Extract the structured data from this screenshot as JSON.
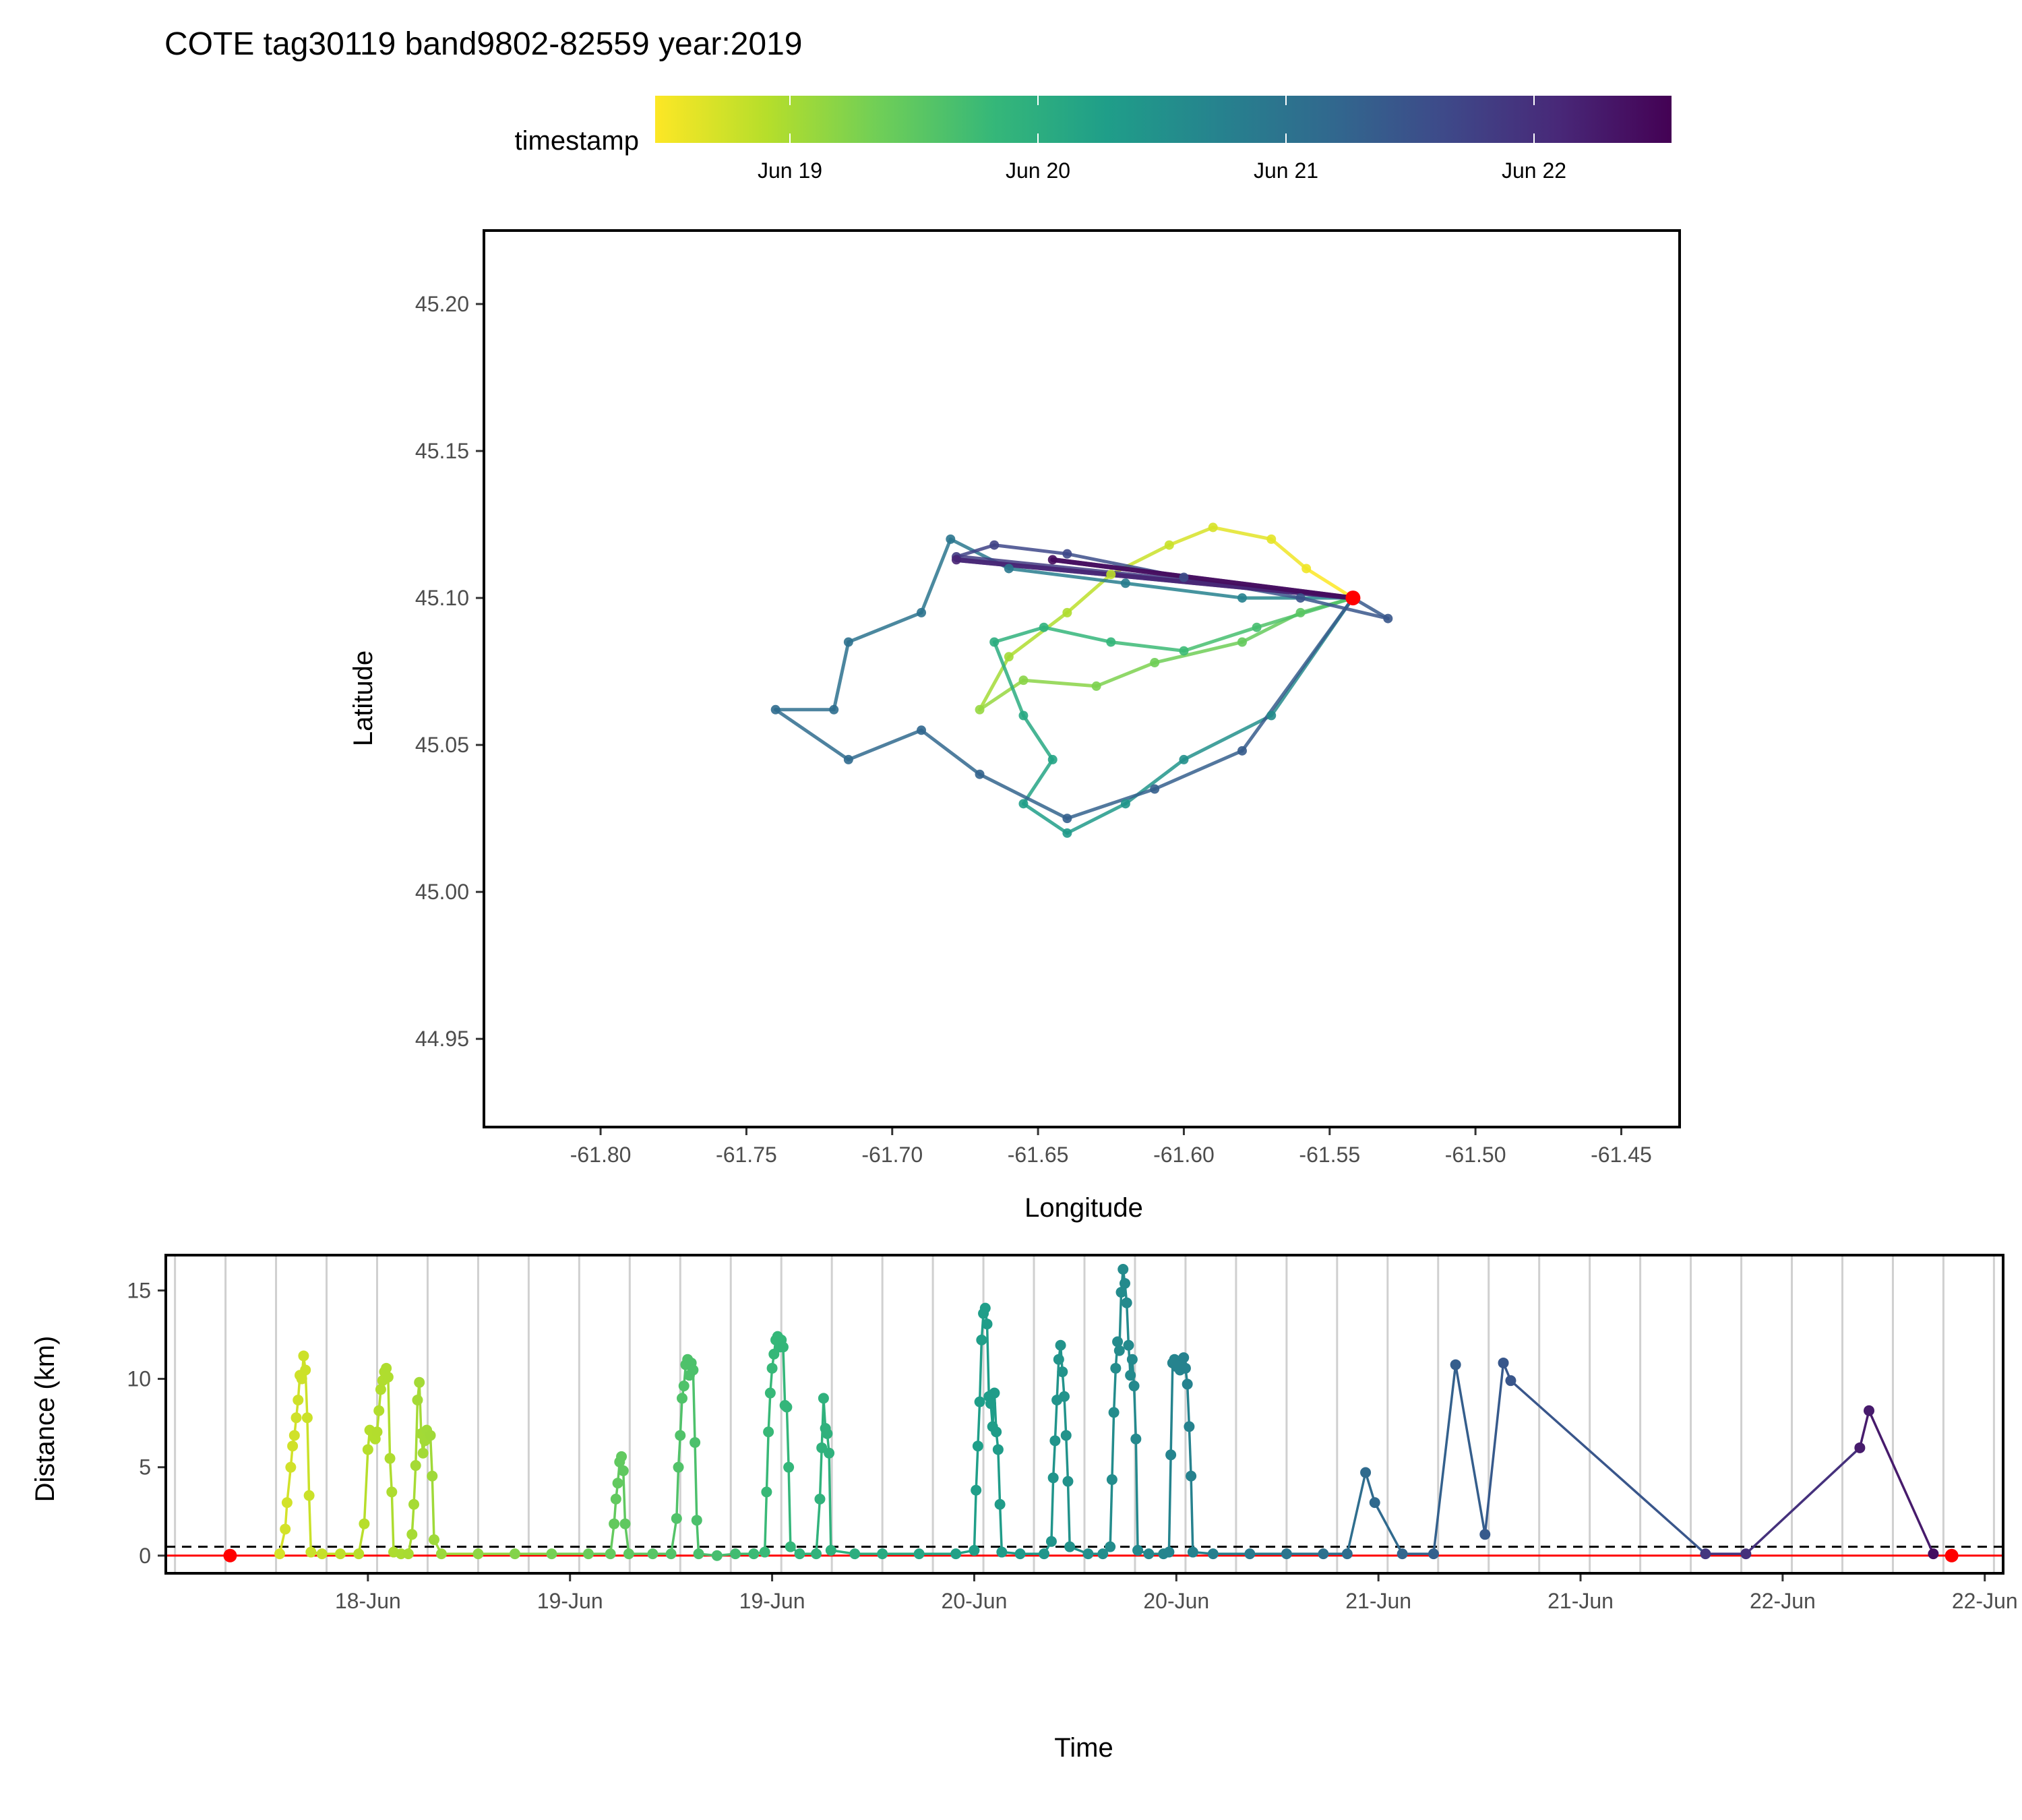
{
  "title": "COTE tag30119 band9802-82559 year:2019",
  "colors": {
    "scale": [
      "#fde725",
      "#b5de2b",
      "#6ece58",
      "#35b779",
      "#1f9e89",
      "#26828e",
      "#31688e",
      "#3e4989",
      "#482878",
      "#440154"
    ],
    "marker": "#ff0000",
    "refline": "#ff0000",
    "grid": "#d0d0d0"
  },
  "legend": {
    "label": "timestamp",
    "ticks": [
      "Jun 19",
      "Jun 20",
      "Jun 21",
      "Jun 22"
    ]
  },
  "chart_data": [
    {
      "type": "line",
      "subtype": "map-track",
      "xlabel": "Longitude",
      "ylabel": "Latitude",
      "xlim": [
        -61.84,
        -61.43
      ],
      "ylim": [
        44.92,
        45.225
      ],
      "x_ticks": [
        "-61.80",
        "-61.75",
        "-61.70",
        "-61.65",
        "-61.60",
        "-61.55",
        "-61.50",
        "-61.45"
      ],
      "y_ticks": [
        "44.95",
        "45.00",
        "45.05",
        "45.10",
        "45.15",
        "45.20"
      ],
      "colony": {
        "lon": -61.542,
        "lat": 45.1
      },
      "track": [
        {
          "lon": -61.542,
          "lat": 45.1,
          "t": 0.0
        },
        {
          "lon": -61.558,
          "lat": 45.11,
          "t": 0.02
        },
        {
          "lon": -61.57,
          "lat": 45.12,
          "t": 0.04
        },
        {
          "lon": -61.59,
          "lat": 45.124,
          "t": 0.06
        },
        {
          "lon": -61.605,
          "lat": 45.118,
          "t": 0.08
        },
        {
          "lon": -61.625,
          "lat": 45.108,
          "t": 0.1
        },
        {
          "lon": -61.64,
          "lat": 45.095,
          "t": 0.12
        },
        {
          "lon": -61.66,
          "lat": 45.08,
          "t": 0.14
        },
        {
          "lon": -61.67,
          "lat": 45.062,
          "t": 0.16
        },
        {
          "lon": -61.655,
          "lat": 45.072,
          "t": 0.18
        },
        {
          "lon": -61.63,
          "lat": 45.07,
          "t": 0.2
        },
        {
          "lon": -61.61,
          "lat": 45.078,
          "t": 0.22
        },
        {
          "lon": -61.58,
          "lat": 45.085,
          "t": 0.24
        },
        {
          "lon": -61.56,
          "lat": 45.095,
          "t": 0.26
        },
        {
          "lon": -61.542,
          "lat": 45.1,
          "t": 0.28
        },
        {
          "lon": -61.575,
          "lat": 45.09,
          "t": 0.3
        },
        {
          "lon": -61.6,
          "lat": 45.082,
          "t": 0.32
        },
        {
          "lon": -61.625,
          "lat": 45.085,
          "t": 0.34
        },
        {
          "lon": -61.648,
          "lat": 45.09,
          "t": 0.36
        },
        {
          "lon": -61.665,
          "lat": 45.085,
          "t": 0.38
        },
        {
          "lon": -61.655,
          "lat": 45.06,
          "t": 0.4
        },
        {
          "lon": -61.645,
          "lat": 45.045,
          "t": 0.42
        },
        {
          "lon": -61.655,
          "lat": 45.03,
          "t": 0.44
        },
        {
          "lon": -61.64,
          "lat": 45.02,
          "t": 0.46
        },
        {
          "lon": -61.62,
          "lat": 45.03,
          "t": 0.48
        },
        {
          "lon": -61.6,
          "lat": 45.045,
          "t": 0.5
        },
        {
          "lon": -61.57,
          "lat": 45.06,
          "t": 0.52
        },
        {
          "lon": -61.542,
          "lat": 45.1,
          "t": 0.54
        },
        {
          "lon": -61.58,
          "lat": 45.1,
          "t": 0.56
        },
        {
          "lon": -61.62,
          "lat": 45.105,
          "t": 0.58
        },
        {
          "lon": -61.66,
          "lat": 45.11,
          "t": 0.6
        },
        {
          "lon": -61.68,
          "lat": 45.12,
          "t": 0.61
        },
        {
          "lon": -61.69,
          "lat": 45.095,
          "t": 0.62
        },
        {
          "lon": -61.715,
          "lat": 45.085,
          "t": 0.63
        },
        {
          "lon": -61.72,
          "lat": 45.062,
          "t": 0.64
        },
        {
          "lon": -61.74,
          "lat": 45.062,
          "t": 0.65
        },
        {
          "lon": -61.715,
          "lat": 45.045,
          "t": 0.66
        },
        {
          "lon": -61.69,
          "lat": 45.055,
          "t": 0.67
        },
        {
          "lon": -61.67,
          "lat": 45.04,
          "t": 0.68
        },
        {
          "lon": -61.64,
          "lat": 45.025,
          "t": 0.69
        },
        {
          "lon": -61.61,
          "lat": 45.035,
          "t": 0.7
        },
        {
          "lon": -61.58,
          "lat": 45.048,
          "t": 0.71
        },
        {
          "lon": -61.542,
          "lat": 45.1,
          "t": 0.72
        },
        {
          "lon": -61.53,
          "lat": 45.093,
          "t": 0.73
        },
        {
          "lon": -61.56,
          "lat": 45.1,
          "t": 0.74
        },
        {
          "lon": -61.6,
          "lat": 45.107,
          "t": 0.76
        },
        {
          "lon": -61.64,
          "lat": 45.115,
          "t": 0.78
        },
        {
          "lon": -61.665,
          "lat": 45.118,
          "t": 0.8
        },
        {
          "lon": -61.678,
          "lat": 45.114,
          "t": 0.82
        },
        {
          "lon": -61.542,
          "lat": 45.1,
          "t": 0.85
        },
        {
          "lon": -61.678,
          "lat": 45.113,
          "t": 0.9
        },
        {
          "lon": -61.542,
          "lat": 45.1,
          "t": 0.94
        },
        {
          "lon": -61.645,
          "lat": 45.113,
          "t": 0.97
        },
        {
          "lon": -61.542,
          "lat": 45.1,
          "t": 1.0
        }
      ]
    },
    {
      "type": "line",
      "subtype": "time-series",
      "xlabel": "Time",
      "ylabel": "Distance (km)",
      "ylim": [
        -1,
        17
      ],
      "xlim": [
        0,
        100
      ],
      "x_ticks": [
        {
          "x": 11,
          "label": "18-Jun"
        },
        {
          "x": 22,
          "label": "19-Jun"
        },
        {
          "x": 33,
          "label": "19-Jun"
        },
        {
          "x": 44,
          "label": "20-Jun"
        },
        {
          "x": 55,
          "label": "20-Jun"
        },
        {
          "x": 66,
          "label": "21-Jun"
        },
        {
          "x": 77,
          "label": "21-Jun"
        },
        {
          "x": 88,
          "label": "22-Jun"
        },
        {
          "x": 99,
          "label": "22-Jun"
        }
      ],
      "y_ticks": [
        "0",
        "5",
        "10",
        "15"
      ],
      "threshold_km": 0.5,
      "reference_km": 0,
      "start_marker": {
        "x": 3.5,
        "y": 0
      },
      "end_marker": {
        "x": 97.2,
        "y": 0
      },
      "points": [
        {
          "x": 6.2,
          "y": 0.1
        },
        {
          "x": 6.5,
          "y": 1.5
        },
        {
          "x": 6.6,
          "y": 3.0
        },
        {
          "x": 6.8,
          "y": 5.0
        },
        {
          "x": 6.9,
          "y": 6.2
        },
        {
          "x": 7.0,
          "y": 6.8
        },
        {
          "x": 7.1,
          "y": 7.8
        },
        {
          "x": 7.2,
          "y": 8.8
        },
        {
          "x": 7.3,
          "y": 10.2
        },
        {
          "x": 7.4,
          "y": 10.0
        },
        {
          "x": 7.5,
          "y": 11.3
        },
        {
          "x": 7.6,
          "y": 10.5
        },
        {
          "x": 7.7,
          "y": 7.8
        },
        {
          "x": 7.8,
          "y": 3.4
        },
        {
          "x": 7.9,
          "y": 0.2
        },
        {
          "x": 8.5,
          "y": 0.1
        },
        {
          "x": 9.5,
          "y": 0.1
        },
        {
          "x": 10.5,
          "y": 0.1
        },
        {
          "x": 10.8,
          "y": 1.8
        },
        {
          "x": 11.0,
          "y": 6.0
        },
        {
          "x": 11.1,
          "y": 7.1
        },
        {
          "x": 11.3,
          "y": 6.8
        },
        {
          "x": 11.4,
          "y": 6.6
        },
        {
          "x": 11.5,
          "y": 7.0
        },
        {
          "x": 11.6,
          "y": 8.2
        },
        {
          "x": 11.7,
          "y": 9.4
        },
        {
          "x": 11.8,
          "y": 9.9
        },
        {
          "x": 11.9,
          "y": 10.4
        },
        {
          "x": 12.0,
          "y": 10.6
        },
        {
          "x": 12.1,
          "y": 10.1
        },
        {
          "x": 12.2,
          "y": 5.5
        },
        {
          "x": 12.3,
          "y": 3.6
        },
        {
          "x": 12.4,
          "y": 0.2
        },
        {
          "x": 12.8,
          "y": 0.1
        },
        {
          "x": 13.2,
          "y": 0.1
        },
        {
          "x": 13.4,
          "y": 1.2
        },
        {
          "x": 13.5,
          "y": 2.9
        },
        {
          "x": 13.6,
          "y": 5.1
        },
        {
          "x": 13.7,
          "y": 8.8
        },
        {
          "x": 13.8,
          "y": 9.8
        },
        {
          "x": 13.9,
          "y": 6.9
        },
        {
          "x": 14.0,
          "y": 5.8
        },
        {
          "x": 14.1,
          "y": 6.5
        },
        {
          "x": 14.2,
          "y": 7.1
        },
        {
          "x": 14.4,
          "y": 6.8
        },
        {
          "x": 14.5,
          "y": 4.5
        },
        {
          "x": 14.6,
          "y": 0.9
        },
        {
          "x": 15.0,
          "y": 0.1
        },
        {
          "x": 17.0,
          "y": 0.1
        },
        {
          "x": 19.0,
          "y": 0.1
        },
        {
          "x": 21.0,
          "y": 0.1
        },
        {
          "x": 23.0,
          "y": 0.1
        },
        {
          "x": 24.2,
          "y": 0.1
        },
        {
          "x": 24.4,
          "y": 1.8
        },
        {
          "x": 24.5,
          "y": 3.2
        },
        {
          "x": 24.6,
          "y": 4.1
        },
        {
          "x": 24.7,
          "y": 5.3
        },
        {
          "x": 24.8,
          "y": 5.6
        },
        {
          "x": 24.9,
          "y": 4.8
        },
        {
          "x": 25.0,
          "y": 1.8
        },
        {
          "x": 25.2,
          "y": 0.1
        },
        {
          "x": 26.5,
          "y": 0.1
        },
        {
          "x": 27.5,
          "y": 0.1
        },
        {
          "x": 27.8,
          "y": 2.1
        },
        {
          "x": 27.9,
          "y": 5.0
        },
        {
          "x": 28.0,
          "y": 6.8
        },
        {
          "x": 28.1,
          "y": 8.9
        },
        {
          "x": 28.2,
          "y": 9.6
        },
        {
          "x": 28.3,
          "y": 10.8
        },
        {
          "x": 28.4,
          "y": 11.1
        },
        {
          "x": 28.5,
          "y": 10.2
        },
        {
          "x": 28.6,
          "y": 10.9
        },
        {
          "x": 28.7,
          "y": 10.5
        },
        {
          "x": 28.8,
          "y": 6.4
        },
        {
          "x": 28.9,
          "y": 2.0
        },
        {
          "x": 29.0,
          "y": 0.1
        },
        {
          "x": 30.0,
          "y": 0.0
        },
        {
          "x": 31.0,
          "y": 0.1
        },
        {
          "x": 32.0,
          "y": 0.1
        },
        {
          "x": 32.6,
          "y": 0.2
        },
        {
          "x": 32.7,
          "y": 3.6
        },
        {
          "x": 32.8,
          "y": 7.0
        },
        {
          "x": 32.9,
          "y": 9.2
        },
        {
          "x": 33.0,
          "y": 10.6
        },
        {
          "x": 33.1,
          "y": 11.4
        },
        {
          "x": 33.2,
          "y": 12.2
        },
        {
          "x": 33.3,
          "y": 12.4
        },
        {
          "x": 33.4,
          "y": 11.8
        },
        {
          "x": 33.5,
          "y": 12.2
        },
        {
          "x": 33.6,
          "y": 11.8
        },
        {
          "x": 33.7,
          "y": 8.5
        },
        {
          "x": 33.8,
          "y": 8.4
        },
        {
          "x": 33.9,
          "y": 5.0
        },
        {
          "x": 34.0,
          "y": 0.5
        },
        {
          "x": 34.5,
          "y": 0.1
        },
        {
          "x": 35.4,
          "y": 0.1
        },
        {
          "x": 35.6,
          "y": 3.2
        },
        {
          "x": 35.7,
          "y": 6.1
        },
        {
          "x": 35.8,
          "y": 8.9
        },
        {
          "x": 35.9,
          "y": 7.2
        },
        {
          "x": 36.0,
          "y": 6.9
        },
        {
          "x": 36.1,
          "y": 5.8
        },
        {
          "x": 36.2,
          "y": 0.3
        },
        {
          "x": 37.5,
          "y": 0.1
        },
        {
          "x": 39.0,
          "y": 0.1
        },
        {
          "x": 41.0,
          "y": 0.1
        },
        {
          "x": 43.0,
          "y": 0.1
        },
        {
          "x": 44.0,
          "y": 0.3
        },
        {
          "x": 44.1,
          "y": 3.7
        },
        {
          "x": 44.2,
          "y": 6.2
        },
        {
          "x": 44.3,
          "y": 8.7
        },
        {
          "x": 44.4,
          "y": 12.2
        },
        {
          "x": 44.5,
          "y": 13.7
        },
        {
          "x": 44.6,
          "y": 14.0
        },
        {
          "x": 44.7,
          "y": 13.1
        },
        {
          "x": 44.8,
          "y": 9.0
        },
        {
          "x": 44.9,
          "y": 8.6
        },
        {
          "x": 45.0,
          "y": 7.3
        },
        {
          "x": 45.1,
          "y": 9.2
        },
        {
          "x": 45.2,
          "y": 7.0
        },
        {
          "x": 45.3,
          "y": 6.0
        },
        {
          "x": 45.4,
          "y": 2.9
        },
        {
          "x": 45.5,
          "y": 0.2
        },
        {
          "x": 46.5,
          "y": 0.1
        },
        {
          "x": 47.8,
          "y": 0.1
        },
        {
          "x": 48.2,
          "y": 0.8
        },
        {
          "x": 48.3,
          "y": 4.4
        },
        {
          "x": 48.4,
          "y": 6.5
        },
        {
          "x": 48.5,
          "y": 8.8
        },
        {
          "x": 48.6,
          "y": 11.1
        },
        {
          "x": 48.7,
          "y": 11.9
        },
        {
          "x": 48.8,
          "y": 10.4
        },
        {
          "x": 48.9,
          "y": 9.0
        },
        {
          "x": 49.0,
          "y": 6.8
        },
        {
          "x": 49.1,
          "y": 4.2
        },
        {
          "x": 49.2,
          "y": 0.5
        },
        {
          "x": 50.2,
          "y": 0.1
        },
        {
          "x": 51.0,
          "y": 0.1
        },
        {
          "x": 51.4,
          "y": 0.5
        },
        {
          "x": 51.5,
          "y": 4.3
        },
        {
          "x": 51.6,
          "y": 8.1
        },
        {
          "x": 51.7,
          "y": 10.6
        },
        {
          "x": 51.8,
          "y": 12.1
        },
        {
          "x": 51.9,
          "y": 11.6
        },
        {
          "x": 52.0,
          "y": 14.9
        },
        {
          "x": 52.1,
          "y": 16.2
        },
        {
          "x": 52.2,
          "y": 15.4
        },
        {
          "x": 52.3,
          "y": 14.3
        },
        {
          "x": 52.4,
          "y": 11.9
        },
        {
          "x": 52.5,
          "y": 10.2
        },
        {
          "x": 52.6,
          "y": 11.1
        },
        {
          "x": 52.7,
          "y": 9.6
        },
        {
          "x": 52.8,
          "y": 6.6
        },
        {
          "x": 52.9,
          "y": 0.3
        },
        {
          "x": 53.5,
          "y": 0.1
        },
        {
          "x": 54.3,
          "y": 0.1
        },
        {
          "x": 54.6,
          "y": 0.2
        },
        {
          "x": 54.7,
          "y": 5.7
        },
        {
          "x": 54.8,
          "y": 10.9
        },
        {
          "x": 54.9,
          "y": 11.1
        },
        {
          "x": 55.0,
          "y": 10.7
        },
        {
          "x": 55.1,
          "y": 10.9
        },
        {
          "x": 55.2,
          "y": 10.5
        },
        {
          "x": 55.3,
          "y": 10.8
        },
        {
          "x": 55.4,
          "y": 11.2
        },
        {
          "x": 55.5,
          "y": 10.6
        },
        {
          "x": 55.6,
          "y": 9.7
        },
        {
          "x": 55.7,
          "y": 7.3
        },
        {
          "x": 55.8,
          "y": 4.5
        },
        {
          "x": 55.9,
          "y": 0.2
        },
        {
          "x": 57.0,
          "y": 0.1
        },
        {
          "x": 59.0,
          "y": 0.1
        },
        {
          "x": 61.0,
          "y": 0.1
        },
        {
          "x": 63.0,
          "y": 0.1
        },
        {
          "x": 64.3,
          "y": 0.1
        },
        {
          "x": 65.3,
          "y": 4.7
        },
        {
          "x": 65.8,
          "y": 3.0
        },
        {
          "x": 67.3,
          "y": 0.1
        },
        {
          "x": 69.0,
          "y": 0.1
        },
        {
          "x": 70.2,
          "y": 10.8
        },
        {
          "x": 71.8,
          "y": 1.2
        },
        {
          "x": 72.8,
          "y": 10.9
        },
        {
          "x": 73.2,
          "y": 9.9
        },
        {
          "x": 83.8,
          "y": 0.1
        },
        {
          "x": 86.0,
          "y": 0.1
        },
        {
          "x": 92.2,
          "y": 6.1
        },
        {
          "x": 92.7,
          "y": 8.2
        },
        {
          "x": 96.2,
          "y": 0.1
        }
      ]
    }
  ]
}
